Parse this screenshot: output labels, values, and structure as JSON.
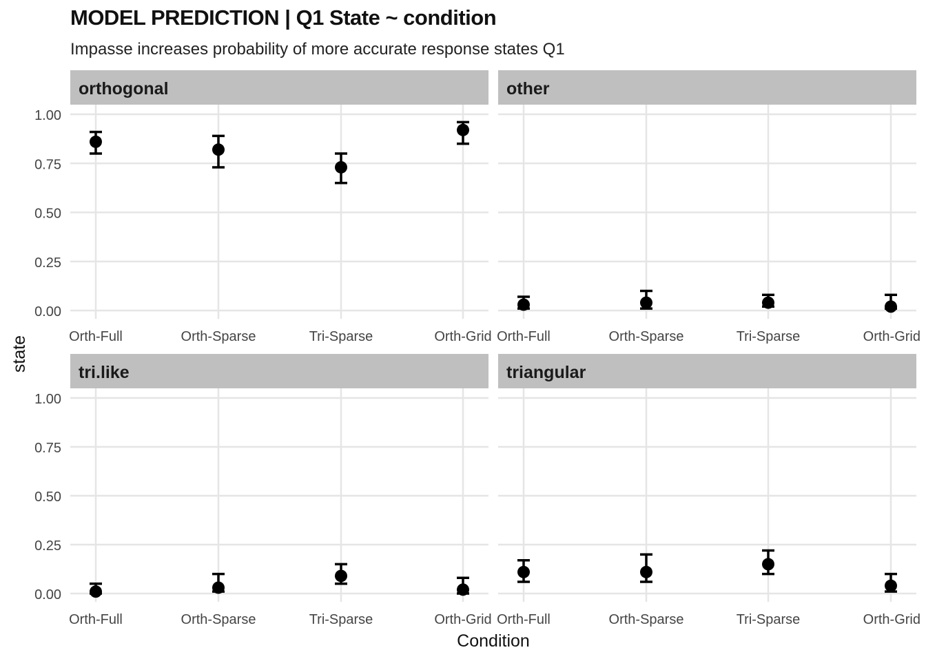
{
  "chart_data": {
    "type": "scatter",
    "title": "MODEL PREDICTION  | Q1 State ~ condition",
    "subtitle": "Impasse increases probability of more accurate response states Q1",
    "xlabel": "Condition",
    "ylabel": "state",
    "categories": [
      "Orth-Full",
      "Orth-Sparse",
      "Tri-Sparse",
      "Orth-Grid"
    ],
    "ylim": [
      0,
      1.0
    ],
    "yticks": [
      "0.00",
      "0.25",
      "0.50",
      "0.75",
      "1.00"
    ],
    "ytick_values": [
      0,
      0.25,
      0.5,
      0.75,
      1.0
    ],
    "grid": true,
    "legend": "none",
    "point_color": "#000000",
    "strip_color": "#bfbfbf",
    "grid_color": "#e5e5e5",
    "panels": [
      {
        "name": "orthogonal",
        "values": [
          0.86,
          0.82,
          0.73,
          0.92
        ],
        "lower": [
          0.8,
          0.73,
          0.65,
          0.85
        ],
        "upper": [
          0.91,
          0.89,
          0.8,
          0.96
        ]
      },
      {
        "name": "other",
        "values": [
          0.03,
          0.04,
          0.04,
          0.02
        ],
        "lower": [
          0.01,
          0.01,
          0.02,
          0.01
        ],
        "upper": [
          0.07,
          0.1,
          0.08,
          0.08
        ]
      },
      {
        "name": "tri.like",
        "values": [
          0.01,
          0.03,
          0.09,
          0.02
        ],
        "lower": [
          0.0,
          0.01,
          0.05,
          0.0
        ],
        "upper": [
          0.05,
          0.1,
          0.15,
          0.08
        ]
      },
      {
        "name": "triangular",
        "values": [
          0.11,
          0.11,
          0.15,
          0.04
        ],
        "lower": [
          0.06,
          0.06,
          0.1,
          0.01
        ],
        "upper": [
          0.17,
          0.2,
          0.22,
          0.1
        ]
      }
    ]
  }
}
